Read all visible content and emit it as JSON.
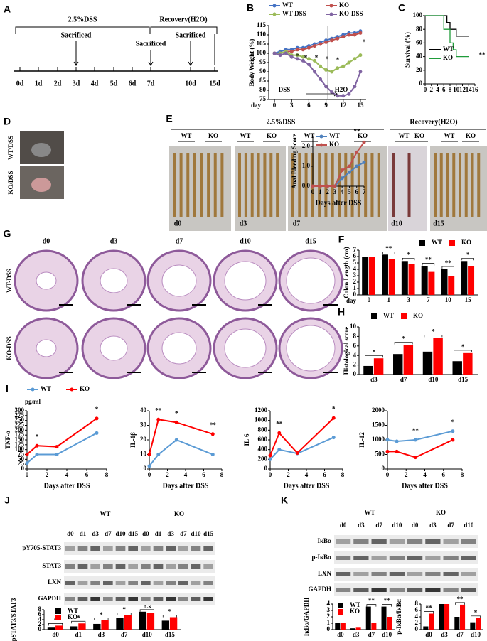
{
  "panel_labels": [
    "A",
    "B",
    "C",
    "D",
    "E",
    "F",
    "G",
    "H",
    "I",
    "J",
    "K"
  ],
  "timeline": {
    "dss": "2.5%DSS",
    "recovery": "Recovery(H2O)",
    "sacrificed": [
      "Sacrificed",
      "Sacrificed",
      "Sacrificed"
    ],
    "days": [
      "0d",
      "1d",
      "2d",
      "3d",
      "4d",
      "5d",
      "6d",
      "7d",
      "10d",
      "15d"
    ]
  },
  "mouse_photos": {
    "labels": [
      "WT/DSS",
      "KO/DSS"
    ]
  },
  "colon_photos": {
    "groups": [
      "2.5%DSS",
      "Recovery(H2O)"
    ],
    "genotypes": [
      "WT",
      "KO",
      "WT",
      "KO",
      "WT",
      "KO",
      "WT",
      "KO",
      "WT",
      "KO"
    ],
    "days": [
      "d0",
      "d3",
      "d7",
      "d10",
      "d15"
    ]
  },
  "histology": {
    "days": [
      "d0",
      "d3",
      "d7",
      "d10",
      "d15"
    ],
    "rows": [
      "WT-DSS",
      "KO-DSS"
    ]
  },
  "blot_j": {
    "groups": [
      "WT",
      "KO"
    ],
    "lanes": [
      "d0",
      "d1",
      "d3",
      "d7",
      "d10",
      "d15",
      "d0",
      "d1",
      "d3",
      "d7",
      "d10",
      "d15"
    ],
    "bands": [
      "pY705-STAT3",
      "STAT3",
      "LXN",
      "GAPDH"
    ]
  },
  "blot_k": {
    "groups": [
      "WT",
      "KO"
    ],
    "lanes": [
      "d0",
      "d3",
      "d7",
      "d10",
      "d0",
      "d3",
      "d7",
      "d10"
    ],
    "bands": [
      "IκBα",
      "p-IκBα",
      "LXN",
      "GAPDH"
    ]
  },
  "chart_data": [
    {
      "type": "line",
      "ylabel": "Body Weight (%)",
      "xlabel": "day",
      "x": [
        0,
        1,
        2,
        3,
        4,
        5,
        6,
        7,
        8,
        9,
        10,
        11,
        12,
        13,
        14,
        15
      ],
      "xlim": [
        -1,
        16
      ],
      "xticks": [
        0,
        3,
        6,
        9,
        12,
        15
      ],
      "ylim": [
        75,
        115
      ],
      "yticks": [
        75,
        80,
        85,
        90,
        95,
        100,
        105,
        110,
        115
      ],
      "series": [
        {
          "name": "WT",
          "color": "#4472c4",
          "values": [
            100,
            101,
            102,
            102,
            103,
            103,
            104,
            105,
            106,
            107,
            108,
            109,
            110,
            111,
            111,
            112
          ]
        },
        {
          "name": "KO",
          "color": "#c0504d",
          "values": [
            100,
            100,
            101,
            101,
            102,
            102,
            103,
            104,
            105,
            106,
            107,
            108,
            109,
            110,
            110,
            111
          ]
        },
        {
          "name": "WT-DSS",
          "color": "#9bbb59",
          "values": [
            100,
            100,
            101,
            99,
            99,
            98,
            97,
            96,
            93,
            91,
            90,
            92,
            93,
            95,
            97,
            99
          ]
        },
        {
          "name": "KO-DSS",
          "color": "#8064a2",
          "values": [
            100,
            99,
            100,
            98,
            97,
            96,
            94,
            90,
            86,
            82,
            79,
            77,
            77,
            78,
            82,
            90
          ]
        }
      ],
      "annotations": [
        "DSS",
        "H2O",
        "*",
        "*",
        "*",
        "*",
        "*",
        "*"
      ]
    },
    {
      "type": "step",
      "ylabel": "Survival (%)",
      "xlim": [
        0,
        16
      ],
      "xticks": [
        0,
        2,
        4,
        6,
        8,
        10,
        12,
        14,
        16
      ],
      "ylim": [
        0,
        100
      ],
      "yticks": [
        0,
        20,
        40,
        60,
        80,
        100
      ],
      "series": [
        {
          "name": "WT",
          "color": "#000000",
          "x": [
            0,
            7,
            8,
            10,
            14
          ],
          "values": [
            100,
            90,
            80,
            70,
            70
          ]
        },
        {
          "name": "KO",
          "color": "#1f9c3a",
          "x": [
            0,
            6,
            8,
            9,
            10,
            14
          ],
          "values": [
            100,
            80,
            60,
            50,
            40,
            40
          ]
        }
      ],
      "annotations": [
        "**"
      ]
    },
    {
      "type": "line",
      "ylabel": "Anal Bleeding Score",
      "xlabel": "Days after DSS",
      "x": [
        0,
        1,
        2,
        3,
        4,
        5,
        6,
        7
      ],
      "xlim": [
        0,
        7
      ],
      "xticks": [
        0,
        1,
        2,
        3,
        4,
        5,
        6,
        7
      ],
      "ylim": [
        0,
        2.5
      ],
      "yticks": [
        {
          "value": 0,
          "label": "0.0"
        },
        {
          "value": 1,
          "label": "1.0"
        },
        {
          "value": 2,
          "label": "2.0"
        }
      ],
      "series": [
        {
          "name": "WT",
          "color": "#4f81bd",
          "values": [
            0,
            0,
            0,
            0,
            0.4,
            0.7,
            1.0,
            1.2
          ]
        },
        {
          "name": "KO",
          "color": "#c0504d",
          "values": [
            0,
            0,
            0,
            0,
            0.8,
            1.0,
            1.7,
            2.2
          ]
        }
      ],
      "annotations": [
        "**"
      ]
    },
    {
      "type": "bar",
      "ylabel": "Colon Length (cm)",
      "xlabel": "day",
      "categories": [
        "0",
        "1",
        "3",
        "7",
        "10",
        "15"
      ],
      "ylim": [
        0,
        7
      ],
      "yticks": [
        0,
        1,
        2,
        3,
        4,
        5,
        6,
        7
      ],
      "series": [
        {
          "name": "WT",
          "color": "#000000",
          "values": [
            6.0,
            6.3,
            5.3,
            4.5,
            4.0,
            5.3
          ]
        },
        {
          "name": "KO",
          "color": "#ff0000",
          "values": [
            6.0,
            5.6,
            4.8,
            3.6,
            3.0,
            4.5
          ]
        }
      ],
      "significance": [
        null,
        "**",
        "*",
        "**",
        "**",
        "*"
      ]
    },
    {
      "type": "bar",
      "ylabel": "Histological score",
      "categories": [
        "d3",
        "d7",
        "d10",
        "d15"
      ],
      "ylim": [
        0,
        10
      ],
      "yticks": [
        0,
        2,
        4,
        6,
        8,
        10
      ],
      "series": [
        {
          "name": "WT",
          "color": "#000000",
          "values": [
            1.8,
            4.3,
            4.8,
            2.8
          ]
        },
        {
          "name": "KO",
          "color": "#ff0000",
          "values": [
            3.4,
            6.2,
            7.7,
            4.5
          ]
        }
      ],
      "significance": [
        "*",
        "*",
        "*",
        "*"
      ]
    },
    {
      "type": "line",
      "ylabel": "TNF-α",
      "xlabel": "Days after DSS",
      "x": [
        0,
        1,
        3,
        7
      ],
      "xlim": [
        0,
        8
      ],
      "xticks": [
        0,
        2,
        4,
        6,
        8
      ],
      "ylim": [
        0,
        300
      ],
      "yticks": [
        0,
        25,
        50,
        75,
        100,
        125,
        150,
        175,
        200,
        225,
        250,
        275,
        300
      ],
      "series": [
        {
          "name": "WT",
          "color": "#5b9bd5",
          "values": [
            30,
            75,
            75,
            185
          ]
        },
        {
          "name": "KO",
          "color": "#ff0000",
          "values": [
            75,
            120,
            115,
            260
          ]
        }
      ],
      "significance": [
        null,
        "*",
        null,
        "*"
      ],
      "annotations": [
        "pg/ml"
      ]
    },
    {
      "type": "line",
      "ylabel": "IL-1β",
      "xlabel": "Days after DSS",
      "x": [
        0,
        1,
        3,
        7
      ],
      "xlim": [
        0,
        8
      ],
      "xticks": [
        0,
        2,
        4,
        6,
        8
      ],
      "ylim": [
        0,
        40
      ],
      "yticks": [
        0,
        10,
        20,
        30,
        40
      ],
      "series": [
        {
          "color": "#5b9bd5",
          "values": [
            2,
            10,
            20,
            10
          ]
        },
        {
          "color": "#ff0000",
          "values": [
            10,
            34,
            32,
            24
          ]
        }
      ],
      "significance": [
        null,
        "**",
        "*",
        "**"
      ]
    },
    {
      "type": "line",
      "ylabel": "IL-6",
      "xlabel": "Days after DSS",
      "x": [
        0,
        1,
        3,
        7
      ],
      "xlim": [
        0,
        8
      ],
      "xticks": [
        0,
        2,
        4,
        6,
        8
      ],
      "ylim": [
        0,
        1200
      ],
      "yticks": [
        0,
        200,
        400,
        600,
        800,
        1000,
        1200
      ],
      "series": [
        {
          "color": "#5b9bd5",
          "values": [
            200,
            400,
            320,
            650
          ]
        },
        {
          "color": "#ff0000",
          "values": [
            280,
            740,
            330,
            1050
          ]
        }
      ],
      "significance": [
        null,
        "**",
        null,
        "*"
      ]
    },
    {
      "type": "line",
      "ylabel": "IL-12",
      "xlabel": "Days after DSS",
      "x": [
        0,
        1,
        3,
        7
      ],
      "xlim": [
        0,
        8
      ],
      "xticks": [
        0,
        2,
        4,
        6,
        8
      ],
      "ylim": [
        0,
        2000
      ],
      "yticks": [
        0,
        500,
        1000,
        1500,
        2000
      ],
      "series": [
        {
          "color": "#5b9bd5",
          "values": [
            1000,
            950,
            1000,
            1300
          ]
        },
        {
          "color": "#ff0000",
          "values": [
            600,
            600,
            400,
            1000
          ]
        }
      ],
      "significance": [
        null,
        null,
        "**",
        "*"
      ]
    },
    {
      "type": "bar",
      "ylabel": "pSTAT3/STAT3",
      "categories": [
        "d0",
        "d1",
        "d3",
        "d7",
        "d10",
        "d15"
      ],
      "ylim": [
        0,
        8
      ],
      "yticks": [
        0,
        2,
        4,
        6,
        8
      ],
      "series": [
        {
          "name": "WT",
          "color": "#000000",
          "values": [
            0.8,
            1.3,
            2.3,
            4.6,
            7.2,
            3.6
          ]
        },
        {
          "name": "KO",
          "color": "#ff0000",
          "values": [
            1.6,
            2.5,
            3.8,
            5.9,
            6.8,
            5.0
          ]
        }
      ],
      "significance": [
        "*",
        "*",
        "*",
        "*",
        "n.s",
        "*"
      ]
    },
    {
      "type": "bar",
      "ylabel": "IκBα/GAPDH",
      "categories": [
        "d0",
        "d3",
        "d7",
        "d10"
      ],
      "ylim": [
        0,
        4
      ],
      "yticks": [
        0,
        1,
        2,
        3,
        4
      ],
      "series": [
        {
          "name": "WT",
          "color": "#000000",
          "values": [
            1.0,
            0.2,
            3.6,
            3.6
          ]
        },
        {
          "name": "KO",
          "color": "#ff0000",
          "values": [
            1.0,
            0.3,
            1.0,
            2.0
          ]
        }
      ],
      "significance": [
        null,
        null,
        "**",
        "**"
      ]
    },
    {
      "type": "bar",
      "ylabel": "p-IκBα/IκBα",
      "categories": [
        "d0",
        "d3",
        "d7",
        "d10"
      ],
      "ylim": [
        0,
        8
      ],
      "yticks": [
        0,
        2,
        4,
        6,
        8
      ],
      "series": [
        {
          "color": "#000000",
          "values": [
            1.0,
            8.0,
            4.0,
            2.3
          ]
        },
        {
          "color": "#ff0000",
          "values": [
            5.0,
            8.0,
            7.8,
            3.6
          ]
        }
      ],
      "significance": [
        "**",
        null,
        "**",
        "*"
      ]
    }
  ]
}
